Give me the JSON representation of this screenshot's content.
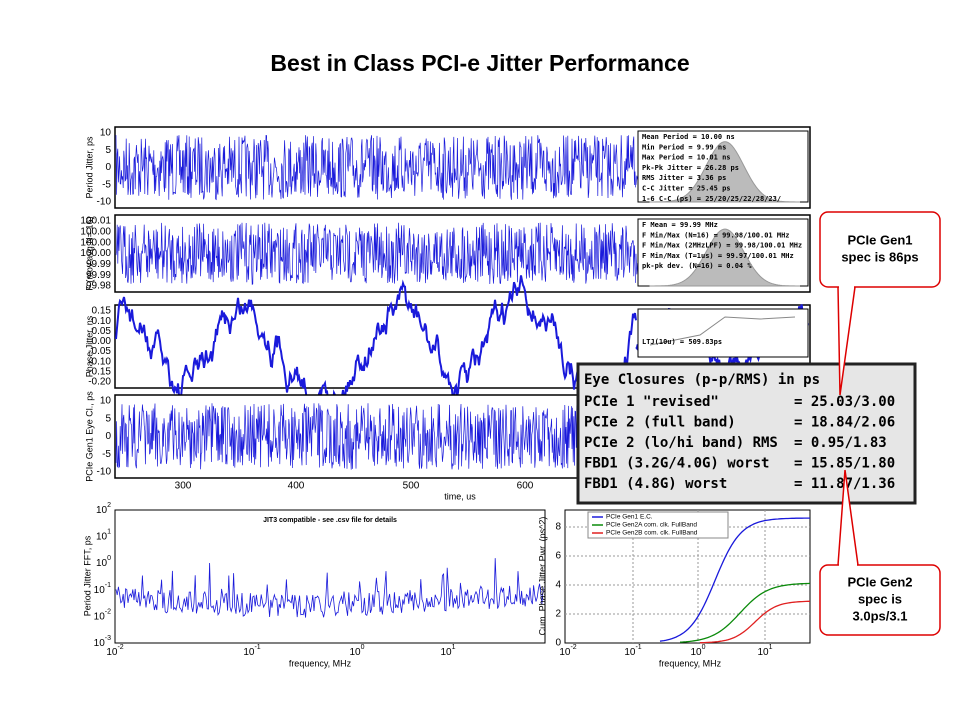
{
  "title": "Best in Class PCI-e Jitter Performance",
  "panels": [
    {
      "ylabel": "Period Jitter, ps",
      "yticks": [
        "10",
        "5",
        "0",
        "-5",
        "-10"
      ],
      "stats": [
        "Mean Period   = 10.00 ns",
        "Min Period    = 9.99 ns",
        "Max Period    = 10.01 ns",
        "Pk-Pk Jitter = 26.28 ps",
        "RMS Jitter   = 3.36 ps",
        "C-C Jitter   = 25.45 ps",
        "1-6 C-C (ps) = 25/20/25/22/28/23/"
      ]
    },
    {
      "ylabel": "F (mov.avg,N= 16)",
      "yticks": [
        "100.01",
        "100.00",
        "100.00",
        "100.00",
        "99.99",
        "99.99",
        "99.98"
      ],
      "stats": [
        "F Mean               = 99.99 MHz",
        "F Min/Max (N=16)     = 99.98/100.01 MHz",
        "F Min/Max (2MHzLPF)  = 99.98/100.01 MHz",
        "F Min/Max (T=1us)    = 99.97/100.01 MHz",
        "pk-pk dev. (N=16)    = 0.04 %"
      ]
    },
    {
      "ylabel": "Phase Jitter, ns",
      "yticks": [
        "0.15",
        "0.10",
        "0.05",
        "0.00",
        "-0.05",
        "-0.10",
        "-0.15",
        "-0.20"
      ],
      "stats": [
        "LTJ(10u) = 509.83ps"
      ]
    },
    {
      "ylabel": "PCIe Gen1 Eye Cl., ps",
      "yticks": [
        "10",
        "5",
        "0",
        "-5",
        "-10"
      ],
      "stats": []
    }
  ],
  "time_axis": {
    "ticks": [
      "300",
      "400",
      "500",
      "600"
    ],
    "label": "time, us"
  },
  "eye_closures": {
    "header": "Eye Closures (p-p/RMS) in ps",
    "rows": [
      [
        "PCIe 1 \"revised\"",
        "= 25.03/3.00"
      ],
      [
        "PCIe 2 (full band)",
        "= 18.84/2.06"
      ],
      [
        "PCIe 2 (lo/hi band) RMS",
        "= 0.95/1.83"
      ],
      [
        "FBD1 (3.2G/4.0G) worst",
        "= 15.85/1.80"
      ],
      [
        "FBD1 (4.8G) worst",
        "= 11.87/1.36"
      ]
    ]
  },
  "fft": {
    "ylabel": "Period Jitter FFT, ps",
    "note": "JIT3 compatible - see .csv file for details",
    "yticks": [
      [
        "10",
        "2"
      ],
      [
        "10",
        "1"
      ],
      [
        "10",
        "0"
      ],
      [
        "10",
        "-1"
      ],
      [
        "10",
        "-2"
      ],
      [
        "10",
        "-3"
      ]
    ],
    "xticks": [
      [
        "10",
        "-2"
      ],
      [
        "10",
        "-1"
      ],
      [
        "10",
        "0"
      ],
      [
        "10",
        "1"
      ]
    ],
    "xlabel": "frequency, MHz"
  },
  "cum": {
    "ylabel": "Cum. Phase Jitter Pwr. (ps^2)",
    "yticks": [
      "8",
      "6",
      "4",
      "2",
      "0"
    ],
    "xticks": [
      [
        "10",
        "-2"
      ],
      [
        "10",
        "-1"
      ],
      [
        "10",
        "0"
      ],
      [
        "10",
        "1"
      ]
    ],
    "xlabel": "frequency, MHz",
    "legend": [
      "PCIe Gen1 E.C.",
      "PCIe Gen2A com. clk. FullBand",
      "PCIe Gen2B com. clk. FullBand"
    ]
  },
  "callouts": [
    [
      "PCIe Gen1",
      "spec is 86ps"
    ],
    [
      "PCIe Gen2",
      "spec is",
      "3.0ps/3.1"
    ]
  ]
}
